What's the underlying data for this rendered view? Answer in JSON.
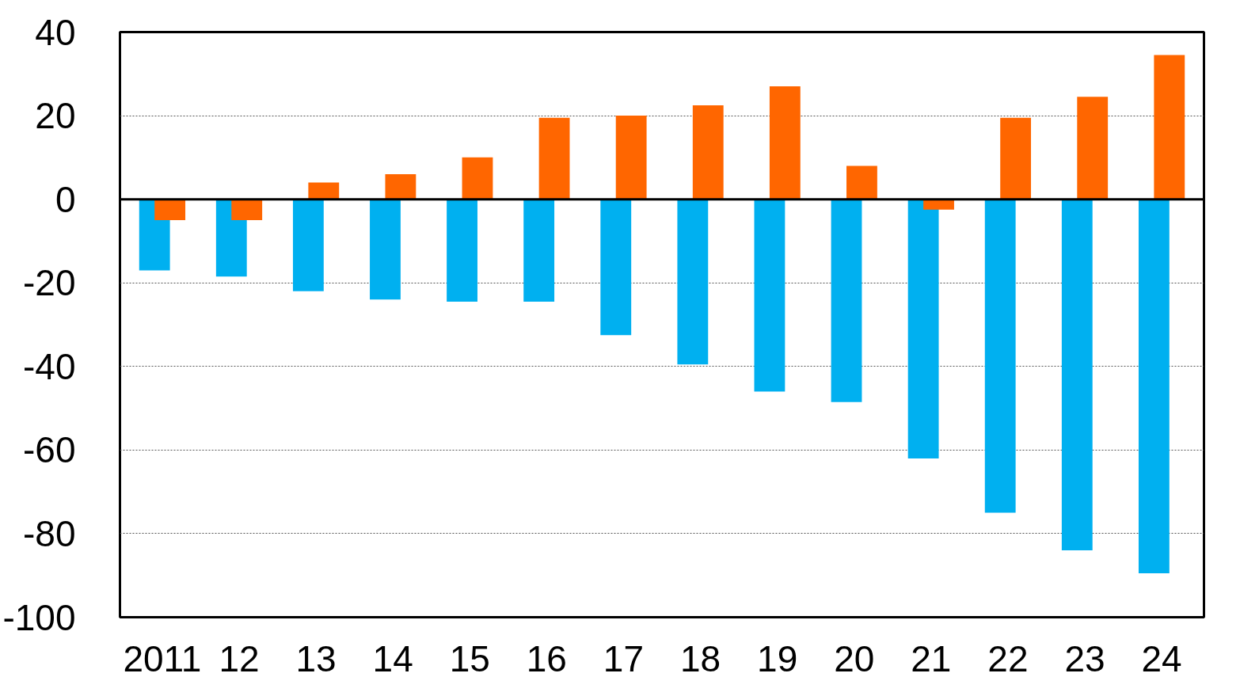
{
  "chart_data": {
    "type": "bar",
    "categories": [
      "2011",
      "12",
      "13",
      "14",
      "15",
      "16",
      "17",
      "18",
      "19",
      "20",
      "21",
      "22",
      "23",
      "24"
    ],
    "series": [
      {
        "color": "#00b0f0",
        "values": [
          -17,
          -18.5,
          -22,
          -24,
          -24.5,
          -24.5,
          -32.5,
          -39.5,
          -46,
          -48.5,
          -62,
          -75,
          -84,
          -89.5
        ]
      },
      {
        "color": "#ff6600",
        "values": [
          -5,
          -5,
          4,
          6,
          10,
          19.5,
          20,
          22.5,
          27,
          8,
          -2.5,
          19.5,
          24.5,
          34.5
        ]
      }
    ],
    "ylim": [
      -100,
      40
    ],
    "yticks": [
      -100,
      -80,
      -60,
      -40,
      -20,
      0,
      20,
      40
    ],
    "grid": "y",
    "ref_lines": [
      {
        "axis": "y",
        "value": 0,
        "color": "#000000",
        "line_style": "solid"
      }
    ]
  }
}
